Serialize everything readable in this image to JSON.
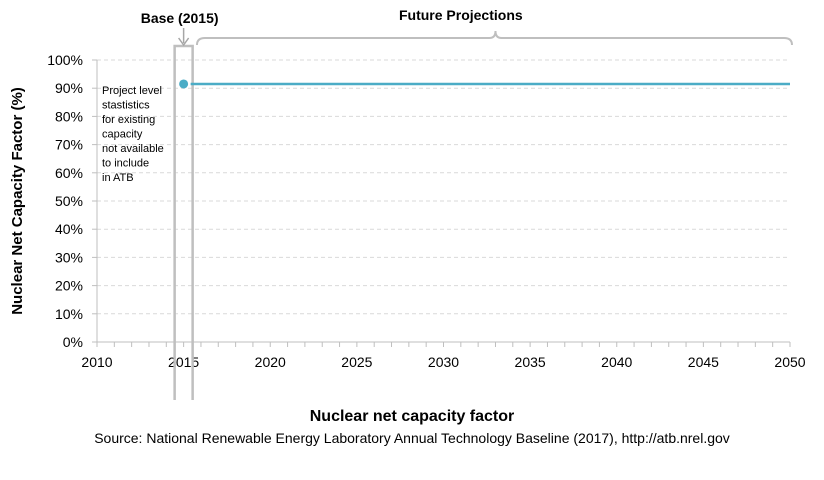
{
  "chart_data": {
    "type": "line",
    "title": "",
    "xlabel": "Nuclear net capacity factor",
    "ylabel": "Nuclear Net Capacity Factor (%)",
    "xlim": [
      2010,
      2050
    ],
    "ylim": [
      0,
      100
    ],
    "x_ticks": [
      "2010",
      "2015",
      "2020",
      "2025",
      "2030",
      "2035",
      "2040",
      "2045",
      "2050"
    ],
    "y_ticks": [
      "0%",
      "10%",
      "20%",
      "30%",
      "40%",
      "50%",
      "60%",
      "70%",
      "80%",
      "90%",
      "100%"
    ],
    "grid": true,
    "series": [
      {
        "x": [
          2015,
          2016,
          2050
        ],
        "values": [
          91.5,
          91.5,
          91.5
        ],
        "color": "#4bacc6"
      }
    ],
    "base_point": {
      "x": 2015,
      "value": 91.5,
      "color": "#4bacc6"
    },
    "annotations": {
      "base_label": "Base (2015)",
      "future_label": "Future Projections",
      "note_lines": [
        "Project level",
        "stastistics",
        "for existing",
        "capacity",
        "not available",
        "to include",
        "in ATB"
      ]
    }
  },
  "source_text": "Source:  National Renewable Energy Laboratory Annual Technology Baseline (2017), http://atb.nrel.gov"
}
